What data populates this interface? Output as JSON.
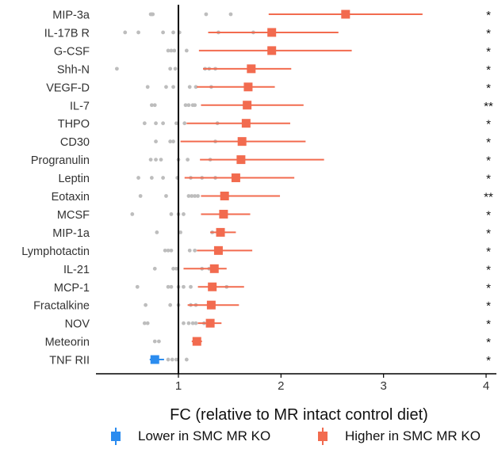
{
  "chart_data": {
    "type": "forest",
    "xlabel": "FC (relative to MR intact control diet)",
    "xlim": [
      0.0,
      4.0
    ],
    "xticks": [
      1,
      2,
      3,
      4
    ],
    "reference_line": 1,
    "grid": false,
    "legend_position": "bottom",
    "legend": [
      {
        "name": "Lower in SMC MR KO",
        "color": "#2B8CEF"
      },
      {
        "name": "Higher in SMC MR KO",
        "color": "#F26B4F"
      }
    ],
    "rows": [
      {
        "label": "MIP-3a",
        "fc": 2.63,
        "lo": 1.88,
        "hi": 3.38,
        "sig": "*",
        "direction": "higher",
        "points": [
          0.73,
          0.74,
          0.75,
          1.27,
          1.51
        ]
      },
      {
        "label": "IL-17B R",
        "fc": 1.91,
        "lo": 1.29,
        "hi": 2.56,
        "sig": "*",
        "direction": "higher",
        "points": [
          0.48,
          0.61,
          0.85,
          0.95,
          1.01,
          1.39,
          1.73
        ]
      },
      {
        "label": "G-CSF",
        "fc": 1.91,
        "lo": 1.2,
        "hi": 2.69,
        "sig": "*",
        "direction": "higher",
        "points": [
          0.9,
          0.93,
          0.96,
          1.08
        ]
      },
      {
        "label": "Shh-N",
        "fc": 1.71,
        "lo": 1.24,
        "hi": 2.1,
        "sig": "*",
        "direction": "higher",
        "points": [
          0.4,
          0.92,
          0.97,
          1.26,
          1.3,
          1.36
        ]
      },
      {
        "label": "VEGF-D",
        "fc": 1.68,
        "lo": 1.18,
        "hi": 1.94,
        "sig": "*",
        "direction": "higher",
        "points": [
          0.7,
          0.88,
          0.95,
          1.11,
          1.17,
          1.32
        ]
      },
      {
        "label": "IL-7",
        "fc": 1.67,
        "lo": 1.22,
        "hi": 2.22,
        "sig": "**",
        "direction": "higher",
        "points": [
          0.74,
          0.77,
          1.07,
          1.1,
          1.14,
          1.16
        ]
      },
      {
        "label": "THPO",
        "fc": 1.66,
        "lo": 1.08,
        "hi": 2.09,
        "sig": "*",
        "direction": "higher",
        "points": [
          0.67,
          0.78,
          0.85,
          0.98,
          1.06,
          1.38
        ]
      },
      {
        "label": "CD30",
        "fc": 1.62,
        "lo": 1.02,
        "hi": 2.24,
        "sig": "*",
        "direction": "higher",
        "points": [
          0.78,
          0.92,
          0.95,
          1.36
        ]
      },
      {
        "label": "Progranulin",
        "fc": 1.61,
        "lo": 1.21,
        "hi": 2.42,
        "sig": "*",
        "direction": "higher",
        "points": [
          0.73,
          0.78,
          0.83,
          1.0,
          1.09,
          1.31
        ]
      },
      {
        "label": "Leptin",
        "fc": 1.56,
        "lo": 1.06,
        "hi": 2.13,
        "sig": "*",
        "direction": "higher",
        "points": [
          0.61,
          0.74,
          0.85,
          0.99,
          1.12,
          1.23,
          1.36
        ]
      },
      {
        "label": "Eotaxin",
        "fc": 1.45,
        "lo": 1.22,
        "hi": 1.99,
        "sig": "**",
        "direction": "higher",
        "points": [
          0.63,
          0.88,
          1.1,
          1.13,
          1.16,
          1.19
        ]
      },
      {
        "label": "MCSF",
        "fc": 1.44,
        "lo": 1.22,
        "hi": 1.7,
        "sig": "*",
        "direction": "higher",
        "points": [
          0.55,
          0.93,
          1.0,
          1.05,
          1.46
        ]
      },
      {
        "label": "MIP-1a",
        "fc": 1.41,
        "lo": 1.31,
        "hi": 1.56,
        "sig": "*",
        "direction": "higher",
        "points": [
          0.79,
          1.02,
          1.33
        ]
      },
      {
        "label": "Lymphotactin",
        "fc": 1.39,
        "lo": 1.18,
        "hi": 1.72,
        "sig": "*",
        "direction": "higher",
        "points": [
          0.87,
          0.9,
          0.93,
          1.11,
          1.16
        ]
      },
      {
        "label": "IL-21",
        "fc": 1.35,
        "lo": 1.05,
        "hi": 1.47,
        "sig": "*",
        "direction": "higher",
        "points": [
          0.77,
          0.95,
          0.98,
          1.23,
          1.3,
          1.36
        ]
      },
      {
        "label": "MCP-1",
        "fc": 1.33,
        "lo": 1.19,
        "hi": 1.64,
        "sig": "*",
        "direction": "higher",
        "points": [
          0.6,
          0.9,
          0.93,
          1.0,
          1.05,
          1.12,
          1.47
        ]
      },
      {
        "label": "Fractalkine",
        "fc": 1.32,
        "lo": 1.09,
        "hi": 1.59,
        "sig": "*",
        "direction": "higher",
        "points": [
          0.68,
          0.92,
          1.0,
          1.12,
          1.17
        ]
      },
      {
        "label": "NOV",
        "fc": 1.31,
        "lo": 1.19,
        "hi": 1.42,
        "sig": "*",
        "direction": "higher",
        "points": [
          0.67,
          0.7,
          1.05,
          1.1,
          1.14,
          1.17,
          1.25,
          1.31
        ]
      },
      {
        "label": "Meteorin",
        "fc": 1.18,
        "lo": 1.13,
        "hi": 1.23,
        "sig": "*",
        "direction": "higher",
        "points": [
          0.77,
          0.81,
          1.17,
          1.2
        ]
      },
      {
        "label": "TNF RII",
        "fc": 0.77,
        "lo": 0.72,
        "hi": 0.86,
        "sig": "*",
        "direction": "lower",
        "points": [
          0.9,
          0.94,
          0.98,
          1.08
        ]
      }
    ]
  }
}
